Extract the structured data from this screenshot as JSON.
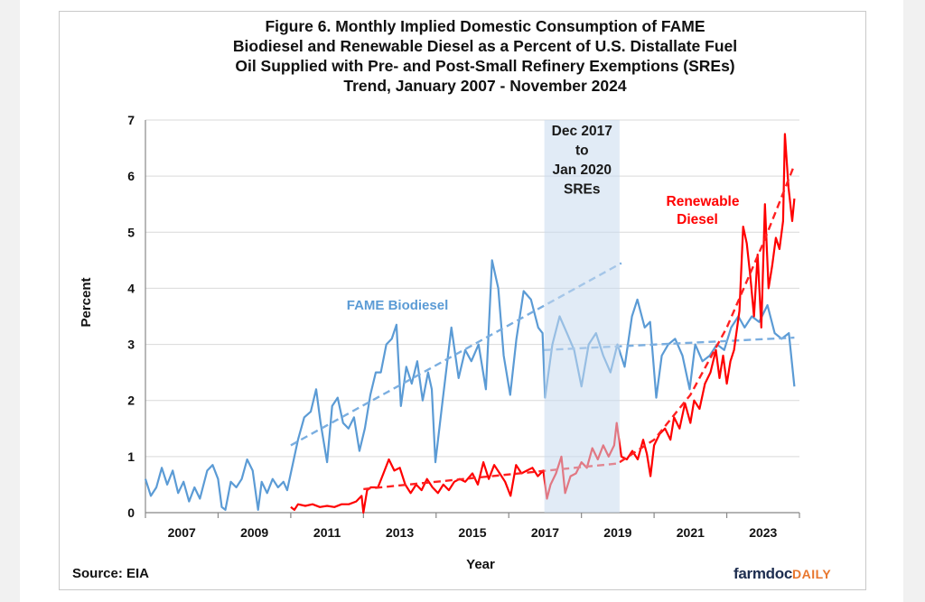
{
  "chart_data": {
    "type": "line",
    "title": [
      "Figure 6. Monthly Implied Domestic Consumption of FAME",
      "Biodiesel and Renewable Diesel as a Percent of U.S. Distallate Fuel",
      "Oil Supplied with Pre- and Post-Small Refinery Exemptions (SREs)",
      "Trend, January 2007 - November 2024"
    ],
    "xlabel": "Year",
    "ylabel": "Percent",
    "xlim": [
      2007,
      2025
    ],
    "ylim": [
      0,
      7
    ],
    "y_ticks": [
      "0",
      "1",
      "2",
      "3",
      "4",
      "5",
      "6",
      "7"
    ],
    "x_tick_labels": [
      "2007",
      "2009",
      "2011",
      "2013",
      "2015",
      "2017",
      "2019",
      "2021",
      "2023"
    ],
    "grid": "horizontal",
    "shaded_region": {
      "from": 2017.98,
      "to": 2020.05,
      "label": [
        "Dec 2017",
        "to",
        "Jan 2020",
        "SREs"
      ],
      "color": "#c8dbef"
    },
    "series": [
      {
        "name": "FAME Biodiesel",
        "label": "FAME Biodiesel",
        "color": "#5b9bd5",
        "points": [
          [
            2007.0,
            0.6
          ],
          [
            2007.15,
            0.3
          ],
          [
            2007.3,
            0.45
          ],
          [
            2007.45,
            0.8
          ],
          [
            2007.6,
            0.5
          ],
          [
            2007.75,
            0.75
          ],
          [
            2007.9,
            0.35
          ],
          [
            2008.05,
            0.55
          ],
          [
            2008.2,
            0.2
          ],
          [
            2008.35,
            0.45
          ],
          [
            2008.5,
            0.25
          ],
          [
            2008.7,
            0.75
          ],
          [
            2008.85,
            0.85
          ],
          [
            2009.0,
            0.6
          ],
          [
            2009.1,
            0.1
          ],
          [
            2009.2,
            0.05
          ],
          [
            2009.35,
            0.55
          ],
          [
            2009.5,
            0.45
          ],
          [
            2009.65,
            0.6
          ],
          [
            2009.8,
            0.95
          ],
          [
            2009.95,
            0.75
          ],
          [
            2010.1,
            0.05
          ],
          [
            2010.2,
            0.55
          ],
          [
            2010.35,
            0.35
          ],
          [
            2010.5,
            0.6
          ],
          [
            2010.65,
            0.45
          ],
          [
            2010.8,
            0.55
          ],
          [
            2010.9,
            0.4
          ],
          [
            2011.0,
            0.7
          ],
          [
            2011.2,
            1.3
          ],
          [
            2011.37,
            1.7
          ],
          [
            2011.55,
            1.8
          ],
          [
            2011.7,
            2.2
          ],
          [
            2011.82,
            1.6
          ],
          [
            2012.0,
            0.9
          ],
          [
            2012.14,
            1.9
          ],
          [
            2012.29,
            2.05
          ],
          [
            2012.44,
            1.6
          ],
          [
            2012.59,
            1.5
          ],
          [
            2012.74,
            1.7
          ],
          [
            2012.89,
            1.1
          ],
          [
            2013.04,
            1.5
          ],
          [
            2013.19,
            2.1
          ],
          [
            2013.34,
            2.5
          ],
          [
            2013.48,
            2.5
          ],
          [
            2013.63,
            3.0
          ],
          [
            2013.78,
            3.1
          ],
          [
            2013.91,
            3.35
          ],
          [
            2014.03,
            1.9
          ],
          [
            2014.18,
            2.6
          ],
          [
            2014.33,
            2.3
          ],
          [
            2014.48,
            2.7
          ],
          [
            2014.63,
            2.0
          ],
          [
            2014.78,
            2.5
          ],
          [
            2014.88,
            2.2
          ],
          [
            2014.98,
            0.9
          ],
          [
            2015.18,
            2.0
          ],
          [
            2015.42,
            3.3
          ],
          [
            2015.62,
            2.4
          ],
          [
            2015.8,
            2.9
          ],
          [
            2015.97,
            2.7
          ],
          [
            2016.17,
            3.0
          ],
          [
            2016.37,
            2.2
          ],
          [
            2016.54,
            4.5
          ],
          [
            2016.71,
            4.0
          ],
          [
            2016.86,
            2.8
          ],
          [
            2017.04,
            2.1
          ],
          [
            2017.21,
            3.1
          ],
          [
            2017.41,
            3.95
          ],
          [
            2017.61,
            3.8
          ],
          [
            2017.81,
            3.3
          ],
          [
            2017.93,
            3.2
          ],
          [
            2018.0,
            2.05
          ],
          [
            2018.2,
            3.0
          ],
          [
            2018.4,
            3.5
          ],
          [
            2018.6,
            3.2
          ],
          [
            2018.8,
            2.9
          ],
          [
            2019.0,
            2.25
          ],
          [
            2019.2,
            3.0
          ],
          [
            2019.4,
            3.2
          ],
          [
            2019.6,
            2.8
          ],
          [
            2019.8,
            2.5
          ],
          [
            2019.99,
            3.0
          ],
          [
            2020.19,
            2.6
          ],
          [
            2020.39,
            3.5
          ],
          [
            2020.54,
            3.8
          ],
          [
            2020.74,
            3.3
          ],
          [
            2020.89,
            3.4
          ],
          [
            2021.06,
            2.05
          ],
          [
            2021.21,
            2.8
          ],
          [
            2021.39,
            3.0
          ],
          [
            2021.58,
            3.1
          ],
          [
            2021.78,
            2.8
          ],
          [
            2021.98,
            2.2
          ],
          [
            2022.13,
            3.0
          ],
          [
            2022.33,
            2.7
          ],
          [
            2022.53,
            2.8
          ],
          [
            2022.73,
            3.0
          ],
          [
            2022.93,
            2.9
          ],
          [
            2023.12,
            3.3
          ],
          [
            2023.32,
            3.5
          ],
          [
            2023.49,
            3.3
          ],
          [
            2023.69,
            3.5
          ],
          [
            2023.89,
            3.4
          ],
          [
            2024.12,
            3.7
          ],
          [
            2024.32,
            3.2
          ],
          [
            2024.51,
            3.1
          ],
          [
            2024.71,
            3.2
          ],
          [
            2024.86,
            2.25
          ]
        ],
        "trends": [
          [
            [
              2011.0,
              1.2
            ],
            [
              2020.1,
              4.45
            ]
          ],
          [
            [
              2017.98,
              2.9
            ],
            [
              2024.86,
              3.12
            ]
          ]
        ]
      },
      {
        "name": "Renewable Diesel",
        "label": [
          "Renewable",
          "Diesel"
        ],
        "color": "#ff0000",
        "points": [
          [
            2011.0,
            0.1
          ],
          [
            2011.1,
            0.05
          ],
          [
            2011.2,
            0.15
          ],
          [
            2011.4,
            0.12
          ],
          [
            2011.6,
            0.15
          ],
          [
            2011.8,
            0.1
          ],
          [
            2012.0,
            0.12
          ],
          [
            2012.2,
            0.1
          ],
          [
            2012.4,
            0.15
          ],
          [
            2012.6,
            0.15
          ],
          [
            2012.8,
            0.2
          ],
          [
            2012.95,
            0.3
          ],
          [
            2013.0,
            0.0
          ],
          [
            2013.1,
            0.4
          ],
          [
            2013.2,
            0.45
          ],
          [
            2013.4,
            0.45
          ],
          [
            2013.55,
            0.7
          ],
          [
            2013.7,
            0.95
          ],
          [
            2013.85,
            0.75
          ],
          [
            2014.0,
            0.8
          ],
          [
            2014.15,
            0.5
          ],
          [
            2014.3,
            0.35
          ],
          [
            2014.45,
            0.5
          ],
          [
            2014.6,
            0.4
          ],
          [
            2014.75,
            0.6
          ],
          [
            2014.9,
            0.45
          ],
          [
            2015.05,
            0.35
          ],
          [
            2015.2,
            0.5
          ],
          [
            2015.35,
            0.4
          ],
          [
            2015.5,
            0.55
          ],
          [
            2015.65,
            0.6
          ],
          [
            2015.8,
            0.55
          ],
          [
            2016.0,
            0.7
          ],
          [
            2016.15,
            0.5
          ],
          [
            2016.3,
            0.9
          ],
          [
            2016.45,
            0.6
          ],
          [
            2016.6,
            0.85
          ],
          [
            2016.75,
            0.7
          ],
          [
            2016.9,
            0.55
          ],
          [
            2017.05,
            0.3
          ],
          [
            2017.2,
            0.85
          ],
          [
            2017.35,
            0.7
          ],
          [
            2017.5,
            0.75
          ],
          [
            2017.65,
            0.8
          ],
          [
            2017.8,
            0.65
          ],
          [
            2017.95,
            0.75
          ],
          [
            2018.05,
            0.25
          ],
          [
            2018.15,
            0.5
          ],
          [
            2018.3,
            0.7
          ],
          [
            2018.45,
            1.0
          ],
          [
            2018.55,
            0.35
          ],
          [
            2018.7,
            0.65
          ],
          [
            2018.85,
            0.7
          ],
          [
            2019.0,
            0.9
          ],
          [
            2019.15,
            0.8
          ],
          [
            2019.3,
            1.15
          ],
          [
            2019.45,
            0.95
          ],
          [
            2019.6,
            1.2
          ],
          [
            2019.75,
            1.0
          ],
          [
            2019.9,
            1.2
          ],
          [
            2019.97,
            1.6
          ],
          [
            2020.1,
            1.0
          ],
          [
            2020.25,
            0.95
          ],
          [
            2020.4,
            1.1
          ],
          [
            2020.55,
            0.95
          ],
          [
            2020.7,
            1.3
          ],
          [
            2020.8,
            1.05
          ],
          [
            2020.9,
            0.65
          ],
          [
            2021.0,
            1.2
          ],
          [
            2021.15,
            1.4
          ],
          [
            2021.3,
            1.5
          ],
          [
            2021.45,
            1.3
          ],
          [
            2021.55,
            1.7
          ],
          [
            2021.7,
            1.5
          ],
          [
            2021.85,
            1.95
          ],
          [
            2022.0,
            1.6
          ],
          [
            2022.1,
            2.0
          ],
          [
            2022.25,
            1.85
          ],
          [
            2022.4,
            2.3
          ],
          [
            2022.55,
            2.5
          ],
          [
            2022.7,
            2.9
          ],
          [
            2022.8,
            2.4
          ],
          [
            2022.9,
            2.8
          ],
          [
            2023.0,
            2.3
          ],
          [
            2023.1,
            2.7
          ],
          [
            2023.2,
            2.9
          ],
          [
            2023.35,
            3.6
          ],
          [
            2023.45,
            5.1
          ],
          [
            2023.55,
            4.8
          ],
          [
            2023.65,
            4.2
          ],
          [
            2023.75,
            3.5
          ],
          [
            2023.85,
            4.6
          ],
          [
            2023.95,
            3.3
          ],
          [
            2024.05,
            5.5
          ],
          [
            2024.15,
            4.0
          ],
          [
            2024.25,
            4.4
          ],
          [
            2024.35,
            4.9
          ],
          [
            2024.45,
            4.7
          ],
          [
            2024.55,
            5.2
          ],
          [
            2024.6,
            6.75
          ],
          [
            2024.7,
            5.8
          ],
          [
            2024.8,
            5.2
          ],
          [
            2024.86,
            5.6
          ]
        ],
        "trends": [
          [
            [
              2013.0,
              0.42
            ],
            [
              2020.05,
              0.88
            ]
          ],
          [
            [
              2020.05,
              0.9
            ],
            [
              2021.0,
              1.3
            ],
            [
              2022.0,
              2.1
            ],
            [
              2023.0,
              3.3
            ],
            [
              2024.0,
              4.8
            ],
            [
              2024.86,
              6.2
            ]
          ]
        ]
      }
    ],
    "source": "Source: EIA"
  },
  "logo": {
    "main": "farmdoc",
    "accent": "DAILY"
  }
}
